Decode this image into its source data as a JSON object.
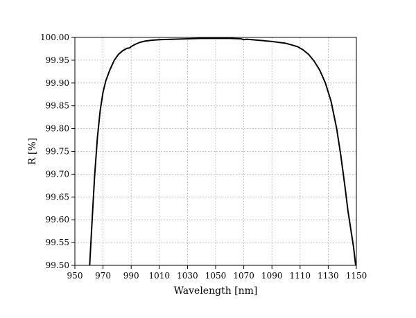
{
  "chart_data": {
    "type": "line",
    "title": "",
    "xlabel": "Wavelength [nm]",
    "ylabel": "R [%]",
    "xlim": [
      950,
      1150
    ],
    "ylim": [
      99.5,
      100.0
    ],
    "xticks": [
      950,
      970,
      990,
      1010,
      1030,
      1050,
      1070,
      1090,
      1110,
      1130,
      1150
    ],
    "yticks": [
      "99.50",
      "99.55",
      "99.60",
      "99.65",
      "99.70",
      "99.75",
      "99.80",
      "99.85",
      "99.90",
      "99.95",
      "100.00"
    ],
    "grid": true,
    "legend": "none",
    "series": [
      {
        "color": "#000000",
        "x": [
          960.5,
          962,
          964,
          966,
          968,
          970,
          972,
          975,
          978,
          981,
          984,
          987,
          989,
          990,
          993,
          996,
          1000,
          1005,
          1010,
          1020,
          1030,
          1040,
          1050,
          1060,
          1068,
          1070,
          1072,
          1080,
          1090,
          1100,
          1108,
          1112,
          1116,
          1120,
          1124,
          1128,
          1132,
          1136,
          1139,
          1142,
          1144,
          1146,
          1148,
          1149.5
        ],
        "y": [
          99.5,
          99.585,
          99.695,
          99.78,
          99.84,
          99.88,
          99.905,
          99.93,
          99.95,
          99.963,
          99.971,
          99.976,
          99.977,
          99.98,
          99.985,
          99.989,
          99.992,
          99.994,
          99.995,
          99.996,
          99.997,
          99.998,
          99.998,
          99.998,
          99.997,
          99.995,
          99.996,
          99.994,
          99.991,
          99.987,
          99.98,
          99.973,
          99.963,
          99.948,
          99.928,
          99.9,
          99.86,
          99.8,
          99.74,
          99.67,
          99.62,
          99.58,
          99.54,
          99.5
        ]
      }
    ]
  }
}
